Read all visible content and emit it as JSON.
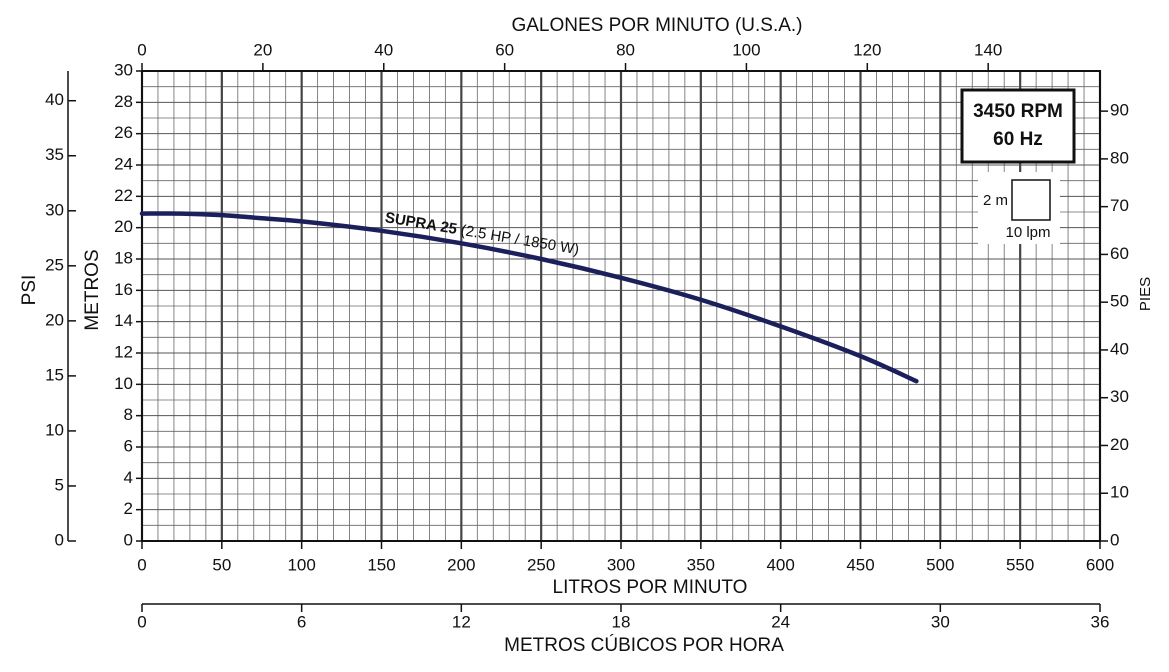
{
  "chart_data": {
    "type": "line",
    "grid": true,
    "xlabel": "LITROS POR MINUTO",
    "xlim": [
      0,
      600
    ],
    "xticks": [
      0,
      50,
      100,
      150,
      200,
      250,
      300,
      350,
      400,
      450,
      500,
      550,
      600
    ],
    "x2label": "GALONES POR MINUTO (U.S.A.)",
    "x2lim": [
      0,
      158.5
    ],
    "x2ticks": [
      0,
      20,
      40,
      60,
      80,
      100,
      120,
      140
    ],
    "x3label": "METROS CÚBICOS POR HORA",
    "x3lim": [
      0,
      36
    ],
    "x3ticks": [
      0,
      6,
      12,
      18,
      24,
      30,
      36
    ],
    "ylabel": "METROS",
    "ylim": [
      0,
      30
    ],
    "yticks": [
      0,
      2,
      4,
      6,
      8,
      10,
      12,
      14,
      16,
      18,
      20,
      22,
      24,
      26,
      28,
      30
    ],
    "y2label": "PIES",
    "y2lim": [
      0,
      98.4
    ],
    "y2ticks": [
      0,
      10,
      20,
      30,
      40,
      50,
      60,
      70,
      80,
      90
    ],
    "y3label": "PSI",
    "y3lim": [
      0,
      42.7
    ],
    "y3ticks": [
      0,
      5,
      10,
      15,
      20,
      25,
      30,
      35,
      40
    ],
    "series": [
      {
        "name": "SUPRA 25",
        "annotation": "(2.5 HP / 1850 W)",
        "color": "#1b1f5c",
        "x": [
          0,
          25,
          50,
          75,
          100,
          150,
          200,
          250,
          300,
          350,
          400,
          450,
          485
        ],
        "values": [
          20.9,
          20.9,
          20.8,
          20.6,
          20.4,
          19.8,
          19.0,
          18.0,
          16.8,
          15.4,
          13.7,
          11.8,
          10.2
        ]
      }
    ],
    "info_box": [
      "3450 RPM",
      "60 Hz"
    ],
    "scale_key": {
      "y": "2 m",
      "x": "10 lpm"
    }
  }
}
